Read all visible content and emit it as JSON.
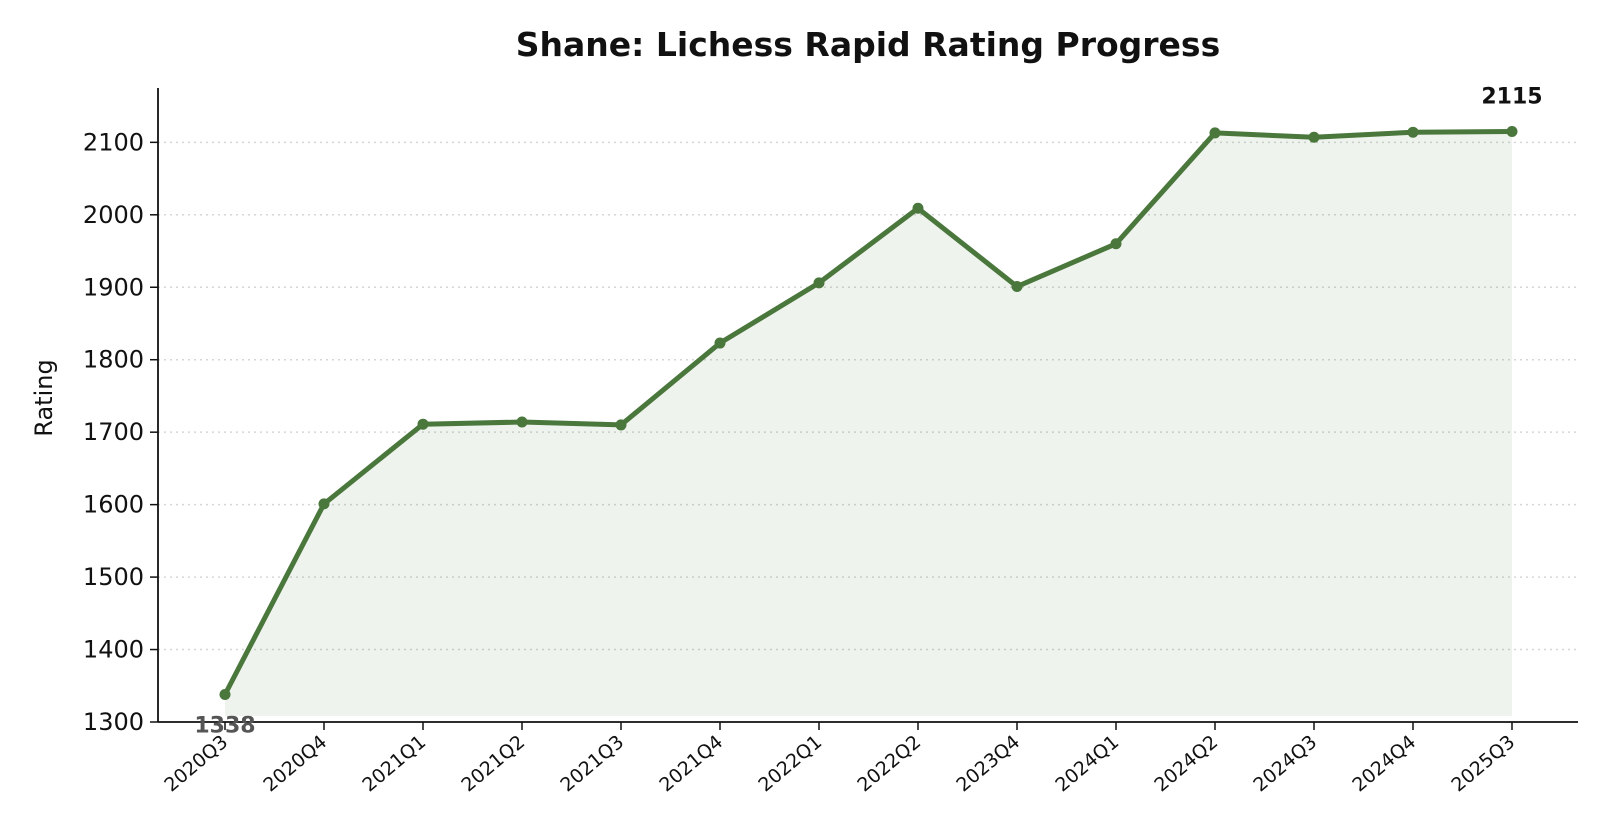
{
  "chart_data": {
    "type": "line",
    "title": "Shane: Lichess Rapid Rating Progress",
    "xlabel": "",
    "ylabel": "Rating",
    "categories": [
      "2020Q3",
      "2020Q4",
      "2021Q1",
      "2021Q2",
      "2021Q3",
      "2021Q4",
      "2022Q1",
      "2022Q2",
      "2023Q4",
      "2024Q1",
      "2024Q2",
      "2024Q3",
      "2024Q4",
      "2025Q3"
    ],
    "values": [
      1338,
      1601,
      1711,
      1714,
      1710,
      1823,
      1906,
      2009,
      1901,
      1960,
      2113,
      2107,
      2114,
      2115
    ],
    "ylim": [
      1300,
      2175
    ],
    "yticks": [
      1300,
      1400,
      1500,
      1600,
      1700,
      1800,
      1900,
      2000,
      2100
    ],
    "grid": "horizontal dotted",
    "fill_under_line": true,
    "annotations": [
      {
        "category": "2020Q3",
        "text": "1338",
        "style": "start"
      },
      {
        "category": "2025Q3",
        "text": "2115",
        "style": "end"
      }
    ],
    "colors": {
      "line": "#4a773c",
      "fill": "#4a773c",
      "start_label": "#555555",
      "end_label": "#111111"
    }
  }
}
